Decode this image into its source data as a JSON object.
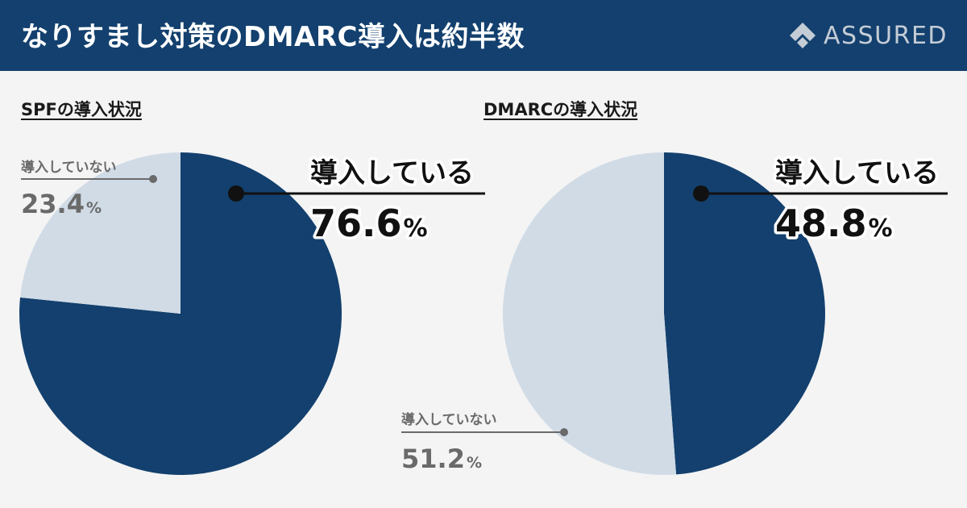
{
  "header": {
    "title": "なりすまし対策のDMARC導入は約半数",
    "brand": "ASSURED"
  },
  "colors": {
    "header_bg": "#13406e",
    "implemented": "#13406e",
    "not_implemented": "#d0dbe6"
  },
  "chart_data": [
    {
      "type": "pie",
      "title": "SPFの導入状況",
      "unit": "%",
      "slices": [
        {
          "label": "導入している",
          "value": 76.6,
          "value_text": "76.6"
        },
        {
          "label": "導入していない",
          "value": 23.4,
          "value_text": "23.4"
        }
      ]
    },
    {
      "type": "pie",
      "title": "DMARCの導入状況",
      "unit": "%",
      "slices": [
        {
          "label": "導入している",
          "value": 48.8,
          "value_text": "48.8"
        },
        {
          "label": "導入していない",
          "value": 51.2,
          "value_text": "51.2"
        }
      ]
    }
  ]
}
